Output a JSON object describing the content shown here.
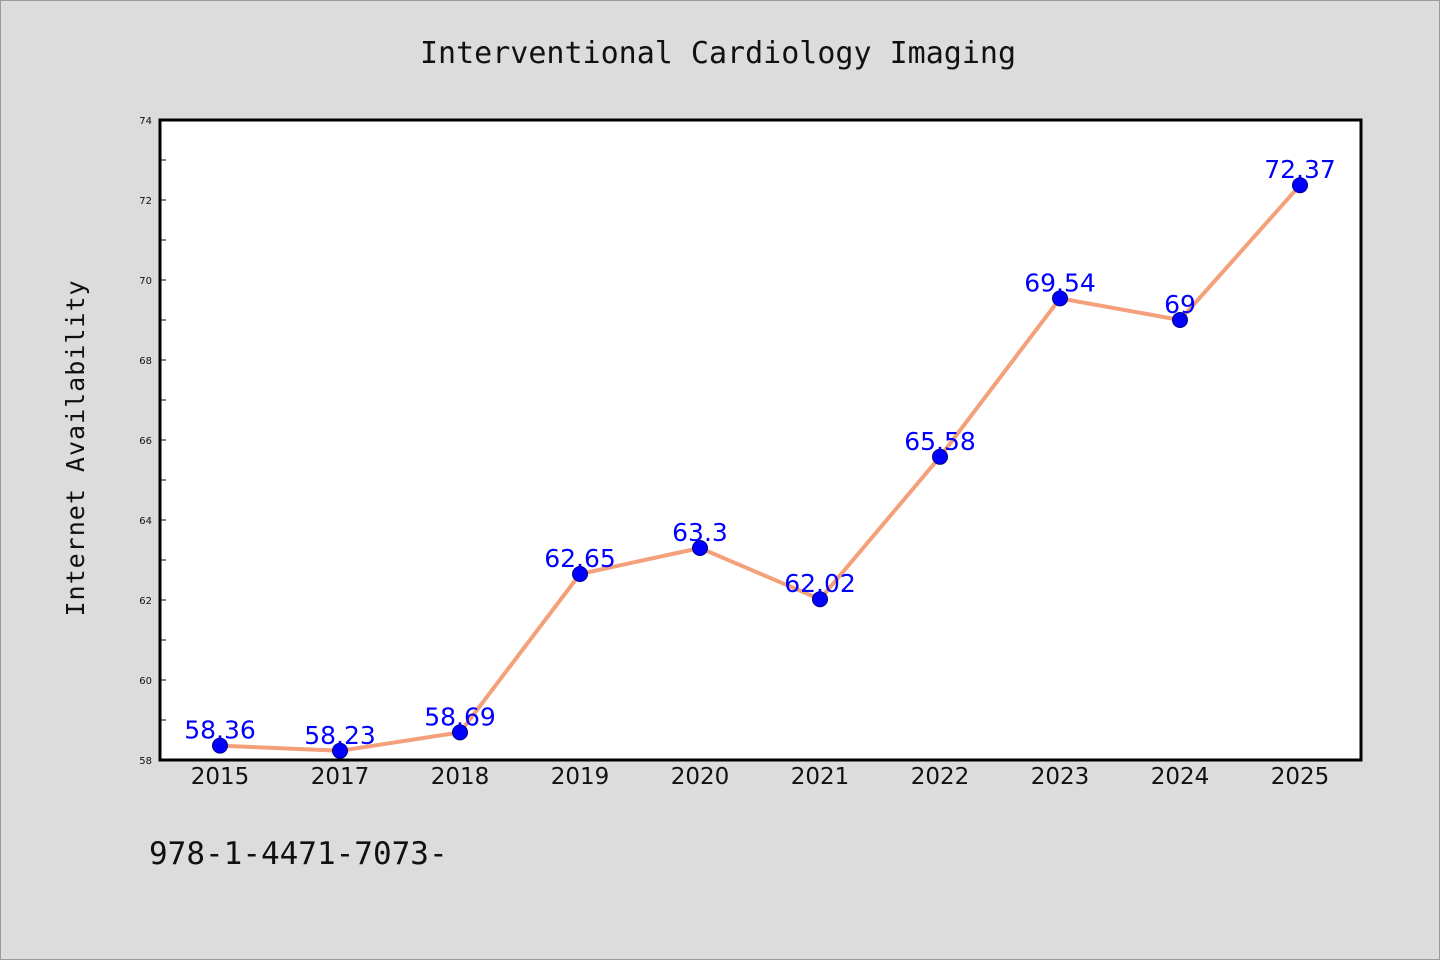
{
  "chart_data": {
    "type": "line",
    "title": "Interventional Cardiology Imaging",
    "xlabel": "",
    "ylabel": "Internet Availability",
    "categories": [
      "2015",
      "2017",
      "2018",
      "2019",
      "2020",
      "2021",
      "2022",
      "2023",
      "2024",
      "2025"
    ],
    "series": [
      {
        "values": [
          58.36,
          58.23,
          58.69,
          62.65,
          63.3,
          62.02,
          65.58,
          69.54,
          69,
          72.37
        ]
      }
    ],
    "data_labels": [
      "58.36",
      "58.23",
      "58.69",
      "62.65",
      "63.3",
      "62.02",
      "65.58",
      "69.54",
      "69",
      "72.37"
    ],
    "ylim": [
      58,
      74
    ],
    "yticks": [
      58,
      60,
      62,
      64,
      66,
      68,
      70,
      72,
      74
    ],
    "grid": false,
    "legend": "none",
    "colors": {
      "line": "#f4a07a",
      "marker": "#0000ff",
      "data_label": "#0000ff",
      "background": "#dcdcdc",
      "plot_area": "#ffffff"
    },
    "footnote": "978-1-4471-7073-"
  }
}
